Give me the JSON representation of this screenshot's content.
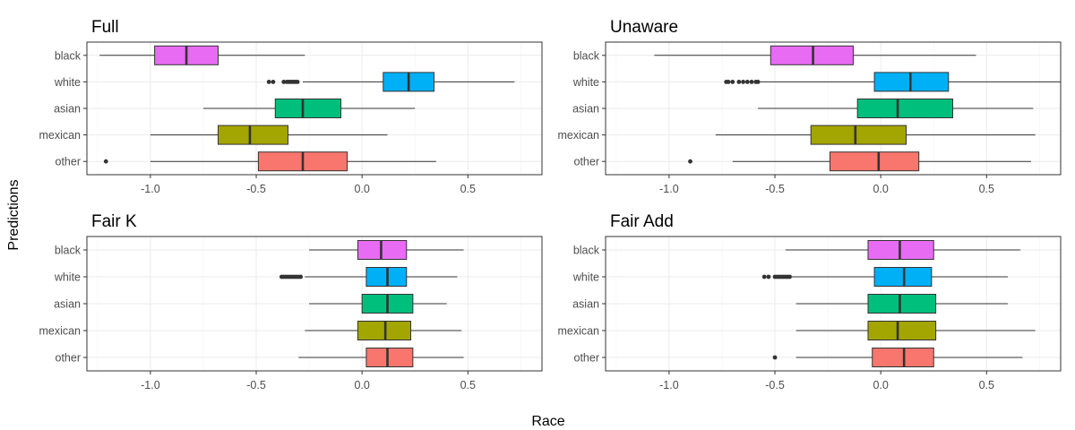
{
  "chart_data": {
    "type": "boxplot",
    "xlabel": "Race",
    "ylabel": "Predictions",
    "xlim": [
      -1.3,
      0.85
    ],
    "x_ticks": [
      -1.0,
      -0.5,
      0.0,
      0.5
    ],
    "x_tick_labels": [
      "-1.0",
      "-0.5",
      "0.0",
      "0.5"
    ],
    "categories": [
      "black",
      "white",
      "asian",
      "mexican",
      "other"
    ],
    "colors": {
      "black": "#E76BF3",
      "white": "#00B0F6",
      "asian": "#00BF7D",
      "mexican": "#A3A500",
      "other": "#F8766D"
    },
    "grid": true,
    "legend": "none",
    "panels": [
      {
        "title": "Full",
        "boxes": [
          {
            "group": "black",
            "whisker_low": -1.24,
            "q1": -0.98,
            "median": -0.83,
            "q3": -0.68,
            "whisker_high": -0.27,
            "outliers": []
          },
          {
            "group": "white",
            "whisker_low": -0.28,
            "q1": 0.1,
            "median": 0.22,
            "q3": 0.34,
            "whisker_high": 0.72,
            "outliers": [
              -0.44,
              -0.42,
              -0.37,
              -0.355,
              -0.345,
              -0.335,
              -0.325,
              -0.315,
              -0.305
            ]
          },
          {
            "group": "asian",
            "whisker_low": -0.75,
            "q1": -0.41,
            "median": -0.28,
            "q3": -0.1,
            "whisker_high": 0.25,
            "outliers": []
          },
          {
            "group": "mexican",
            "whisker_low": -1.0,
            "q1": -0.68,
            "median": -0.53,
            "q3": -0.35,
            "whisker_high": 0.12,
            "outliers": []
          },
          {
            "group": "other",
            "whisker_low": -1.0,
            "q1": -0.49,
            "median": -0.28,
            "q3": -0.07,
            "whisker_high": 0.35,
            "outliers": [
              -1.21
            ]
          }
        ]
      },
      {
        "title": "Unaware",
        "boxes": [
          {
            "group": "black",
            "whisker_low": -1.07,
            "q1": -0.52,
            "median": -0.32,
            "q3": -0.13,
            "whisker_high": 0.45,
            "outliers": []
          },
          {
            "group": "white",
            "whisker_low": -0.57,
            "q1": -0.03,
            "median": 0.14,
            "q3": 0.32,
            "whisker_high": 0.85,
            "outliers": [
              -0.73,
              -0.72,
              -0.7,
              -0.67,
              -0.65,
              -0.63,
              -0.61,
              -0.59,
              -0.58
            ]
          },
          {
            "group": "asian",
            "whisker_low": -0.58,
            "q1": -0.11,
            "median": 0.08,
            "q3": 0.34,
            "whisker_high": 0.72,
            "outliers": []
          },
          {
            "group": "mexican",
            "whisker_low": -0.78,
            "q1": -0.33,
            "median": -0.12,
            "q3": 0.12,
            "whisker_high": 0.73,
            "outliers": []
          },
          {
            "group": "other",
            "whisker_low": -0.7,
            "q1": -0.24,
            "median": -0.01,
            "q3": 0.18,
            "whisker_high": 0.71,
            "outliers": [
              -0.9
            ]
          }
        ]
      },
      {
        "title": "Fair K",
        "boxes": [
          {
            "group": "black",
            "whisker_low": -0.25,
            "q1": -0.02,
            "median": 0.09,
            "q3": 0.21,
            "whisker_high": 0.48,
            "outliers": []
          },
          {
            "group": "white",
            "whisker_low": -0.27,
            "q1": 0.02,
            "median": 0.12,
            "q3": 0.21,
            "whisker_high": 0.45,
            "outliers": [
              -0.38,
              -0.37,
              -0.36,
              -0.35,
              -0.34,
              -0.33,
              -0.32,
              -0.31,
              -0.3,
              -0.29
            ]
          },
          {
            "group": "asian",
            "whisker_low": -0.25,
            "q1": 0.0,
            "median": 0.12,
            "q3": 0.24,
            "whisker_high": 0.4,
            "outliers": []
          },
          {
            "group": "mexican",
            "whisker_low": -0.27,
            "q1": -0.02,
            "median": 0.11,
            "q3": 0.23,
            "whisker_high": 0.47,
            "outliers": []
          },
          {
            "group": "other",
            "whisker_low": -0.3,
            "q1": 0.02,
            "median": 0.12,
            "q3": 0.24,
            "whisker_high": 0.48,
            "outliers": []
          }
        ]
      },
      {
        "title": "Fair Add",
        "boxes": [
          {
            "group": "black",
            "whisker_low": -0.45,
            "q1": -0.06,
            "median": 0.09,
            "q3": 0.25,
            "whisker_high": 0.66,
            "outliers": []
          },
          {
            "group": "white",
            "whisker_low": -0.42,
            "q1": -0.03,
            "median": 0.11,
            "q3": 0.24,
            "whisker_high": 0.6,
            "outliers": [
              -0.55,
              -0.53,
              -0.5,
              -0.49,
              -0.48,
              -0.47,
              -0.46,
              -0.45,
              -0.44,
              -0.43
            ]
          },
          {
            "group": "asian",
            "whisker_low": -0.4,
            "q1": -0.06,
            "median": 0.09,
            "q3": 0.26,
            "whisker_high": 0.6,
            "outliers": []
          },
          {
            "group": "mexican",
            "whisker_low": -0.4,
            "q1": -0.06,
            "median": 0.08,
            "q3": 0.26,
            "whisker_high": 0.73,
            "outliers": []
          },
          {
            "group": "other",
            "whisker_low": -0.4,
            "q1": -0.04,
            "median": 0.11,
            "q3": 0.25,
            "whisker_high": 0.67,
            "outliers": [
              -0.5
            ]
          }
        ]
      }
    ]
  }
}
